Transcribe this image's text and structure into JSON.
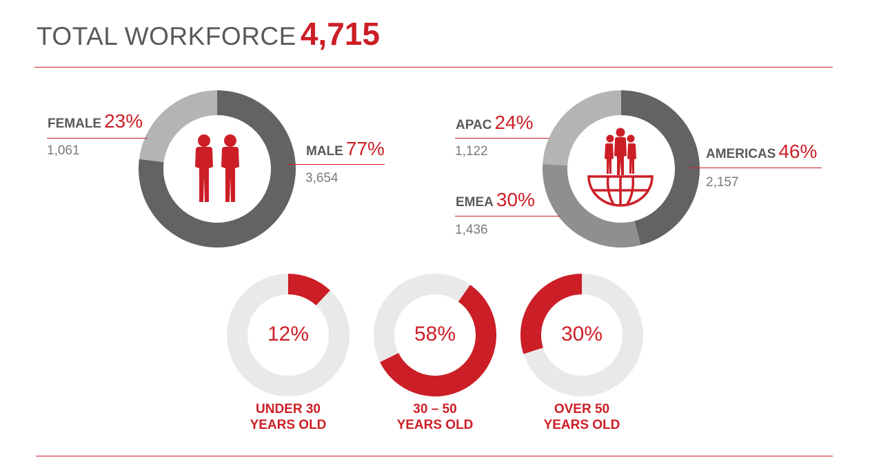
{
  "header": {
    "title_label": "TOTAL WORKFORCE",
    "title_value": "4,715"
  },
  "colors": {
    "red": "#cc1e26",
    "dark_gray": "#636363",
    "mid_gray": "#8f8f8f",
    "light_gray": "#b4b4b4",
    "track": "#e9e9e9"
  },
  "icons": {
    "gender": "people-icon",
    "region": "globe-people-icon"
  },
  "chart_data": [
    {
      "type": "pie",
      "slices": [
        {
          "label": "FEMALE",
          "percent_label": "23%",
          "count": "1,061",
          "value": 23,
          "color": "#b4b4b4"
        },
        {
          "label": "MALE",
          "percent_label": "77%",
          "count": "3,654",
          "value": 77,
          "color": "#636363"
        }
      ]
    },
    {
      "type": "pie",
      "slices": [
        {
          "label": "AMERICAS",
          "percent_label": "46%",
          "count": "2,157",
          "value": 46,
          "color": "#636363"
        },
        {
          "label": "EMEA",
          "percent_label": "30%",
          "count": "1,436",
          "value": 30,
          "color": "#8f8f8f"
        },
        {
          "label": "APAC",
          "percent_label": "24%",
          "count": "1,122",
          "value": 24,
          "color": "#b4b4b4"
        }
      ]
    },
    {
      "type": "pie",
      "groups": [
        {
          "line1": "UNDER 30",
          "line2": "YEARS OLD",
          "percent_label": "12%",
          "value": 12,
          "start": "top",
          "direction": "clockwise"
        },
        {
          "line1": "30 – 50",
          "line2": "YEARS OLD",
          "percent_label": "58%",
          "value": 58,
          "start": "top-right",
          "direction": "clockwise"
        },
        {
          "line1": "OVER 50",
          "line2": "YEARS OLD",
          "percent_label": "30%",
          "value": 30,
          "start": "top",
          "direction": "counterclockwise"
        }
      ]
    }
  ]
}
